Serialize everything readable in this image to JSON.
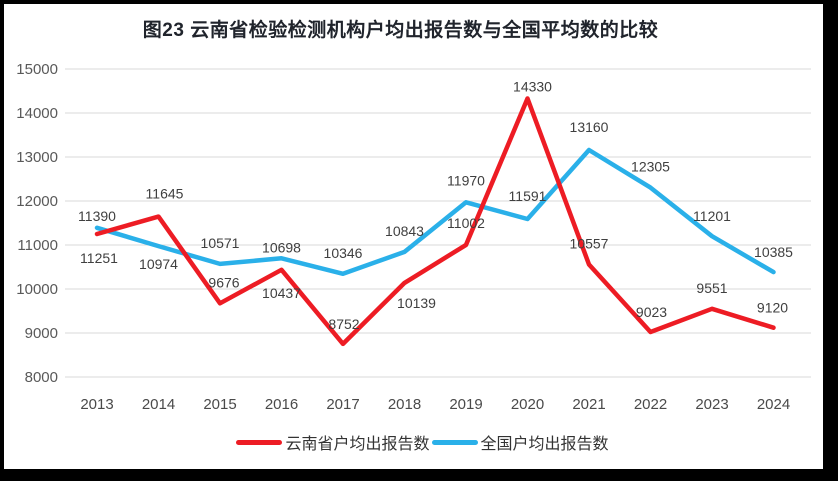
{
  "title": "图23 云南省检验检测机构户均出报告数与全国平均数的比较",
  "chart_data": {
    "type": "line",
    "title": "图23 云南省检验检测机构户均出报告数与全国平均数的比较",
    "categories": [
      "2013",
      "2014",
      "2015",
      "2016",
      "2017",
      "2018",
      "2019",
      "2020",
      "2021",
      "2022",
      "2023",
      "2024"
    ],
    "series": [
      {
        "name": "云南省户均出报告数",
        "color": "#ED1C24",
        "values": [
          11251,
          11645,
          9676,
          10437,
          8752,
          10139,
          11002,
          14330,
          10557,
          9023,
          9551,
          9120
        ]
      },
      {
        "name": "全国户均出报告数",
        "color": "#2AB0E9",
        "values": [
          11390,
          10974,
          10571,
          10698,
          10346,
          10843,
          11970,
          11591,
          13160,
          12305,
          11201,
          10385
        ]
      }
    ],
    "ylim": [
      8000,
      15000
    ],
    "ytick_step": 1000,
    "yticks": [
      "8000",
      "9000",
      "10000",
      "11000",
      "12000",
      "13000",
      "14000",
      "15000"
    ],
    "xlabel": "",
    "ylabel": "",
    "grid": "horizontal",
    "legend_position": "bottom",
    "data_labels": true
  },
  "colors": {
    "yunnan_red": "#ED1C24",
    "national_blue": "#2AB0E9",
    "gridline": "#D9D9D9",
    "frame": "#000000"
  }
}
